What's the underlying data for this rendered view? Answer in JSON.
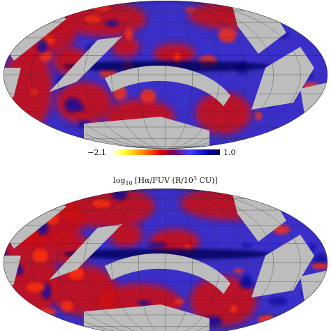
{
  "colorbar": {
    "min_label": "−2.1",
    "max_label": "1.0"
  },
  "axis_label": {
    "parts": [
      "log",
      "10",
      " [Hα/FUV (R/10",
      "3",
      " CU)]"
    ]
  }
}
